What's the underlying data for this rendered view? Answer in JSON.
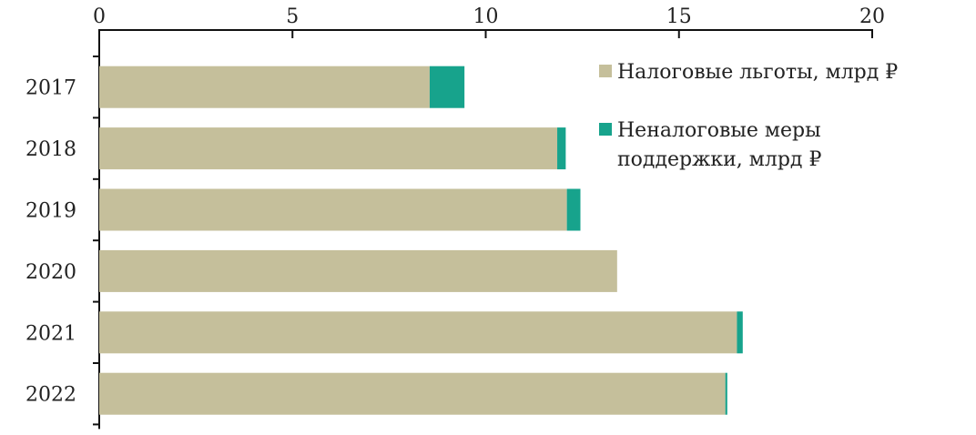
{
  "chart_data": {
    "type": "bar",
    "orientation": "horizontal",
    "stacked": true,
    "categories": [
      "2017",
      "2018",
      "2019",
      "2020",
      "2021",
      "2022"
    ],
    "series": [
      {
        "name": "Налоговые льготы, млрд ₽",
        "color": "#c5bf9b",
        "values": [
          8.55,
          11.85,
          12.1,
          13.4,
          16.5,
          16.2
        ]
      },
      {
        "name": "Неналоговые меры поддержки, млрд ₽",
        "color": "#17a38c",
        "values": [
          0.9,
          0.22,
          0.35,
          0.0,
          0.15,
          0.05
        ]
      }
    ],
    "xlim": [
      0,
      20
    ],
    "xticks": [
      0,
      5,
      10,
      15,
      20
    ],
    "x_axis_position": "top",
    "grid": false,
    "legend_position": "top-right",
    "legend": [
      {
        "lines": [
          "Налоговые льготы, млрд ₽"
        ]
      },
      {
        "lines": [
          "Неналоговые меры",
          "поддержки, млрд ₽"
        ]
      }
    ]
  }
}
